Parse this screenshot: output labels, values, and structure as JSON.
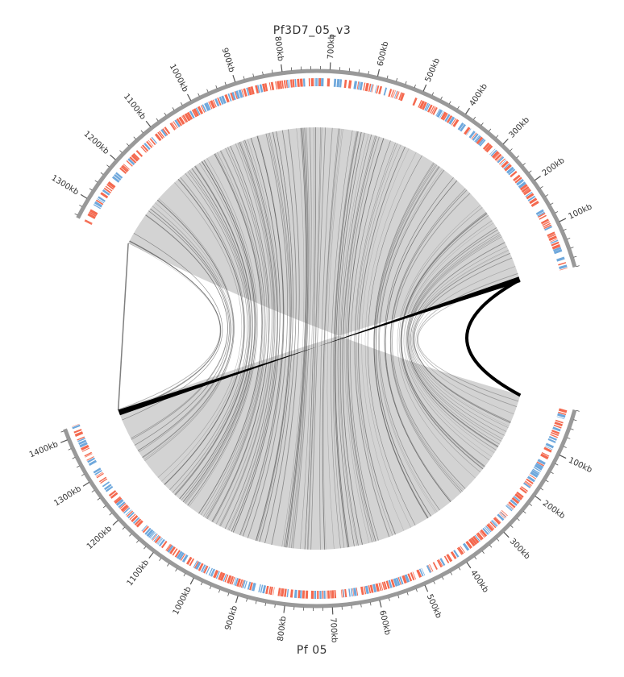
{
  "top_genome": {
    "title": "Pf3D7_05_v3",
    "tick_labels": [
      "100kb",
      "200kb",
      "300kb",
      "400kb",
      "500kb",
      "600kb",
      "700kb",
      "800kb",
      "900kb",
      "1000kb",
      "1100kb",
      "1200kb",
      "1300kb"
    ]
  },
  "bottom_genome": {
    "title": "Pf  05",
    "tick_labels": [
      "100kb",
      "200kb",
      "300kb",
      "400kb",
      "500kb",
      "600kb",
      "700kb",
      "800kb",
      "900kb",
      "1000kb",
      "1100kb",
      "1200kb",
      "1300kb",
      "1400kb"
    ]
  },
  "colors": {
    "backbone": "#999999",
    "gene_forward": "#f4694f",
    "gene_reverse": "#6fa8dc",
    "links": "#d3d3d3",
    "link_strokes": "#555555",
    "inversion": "#000000"
  }
}
